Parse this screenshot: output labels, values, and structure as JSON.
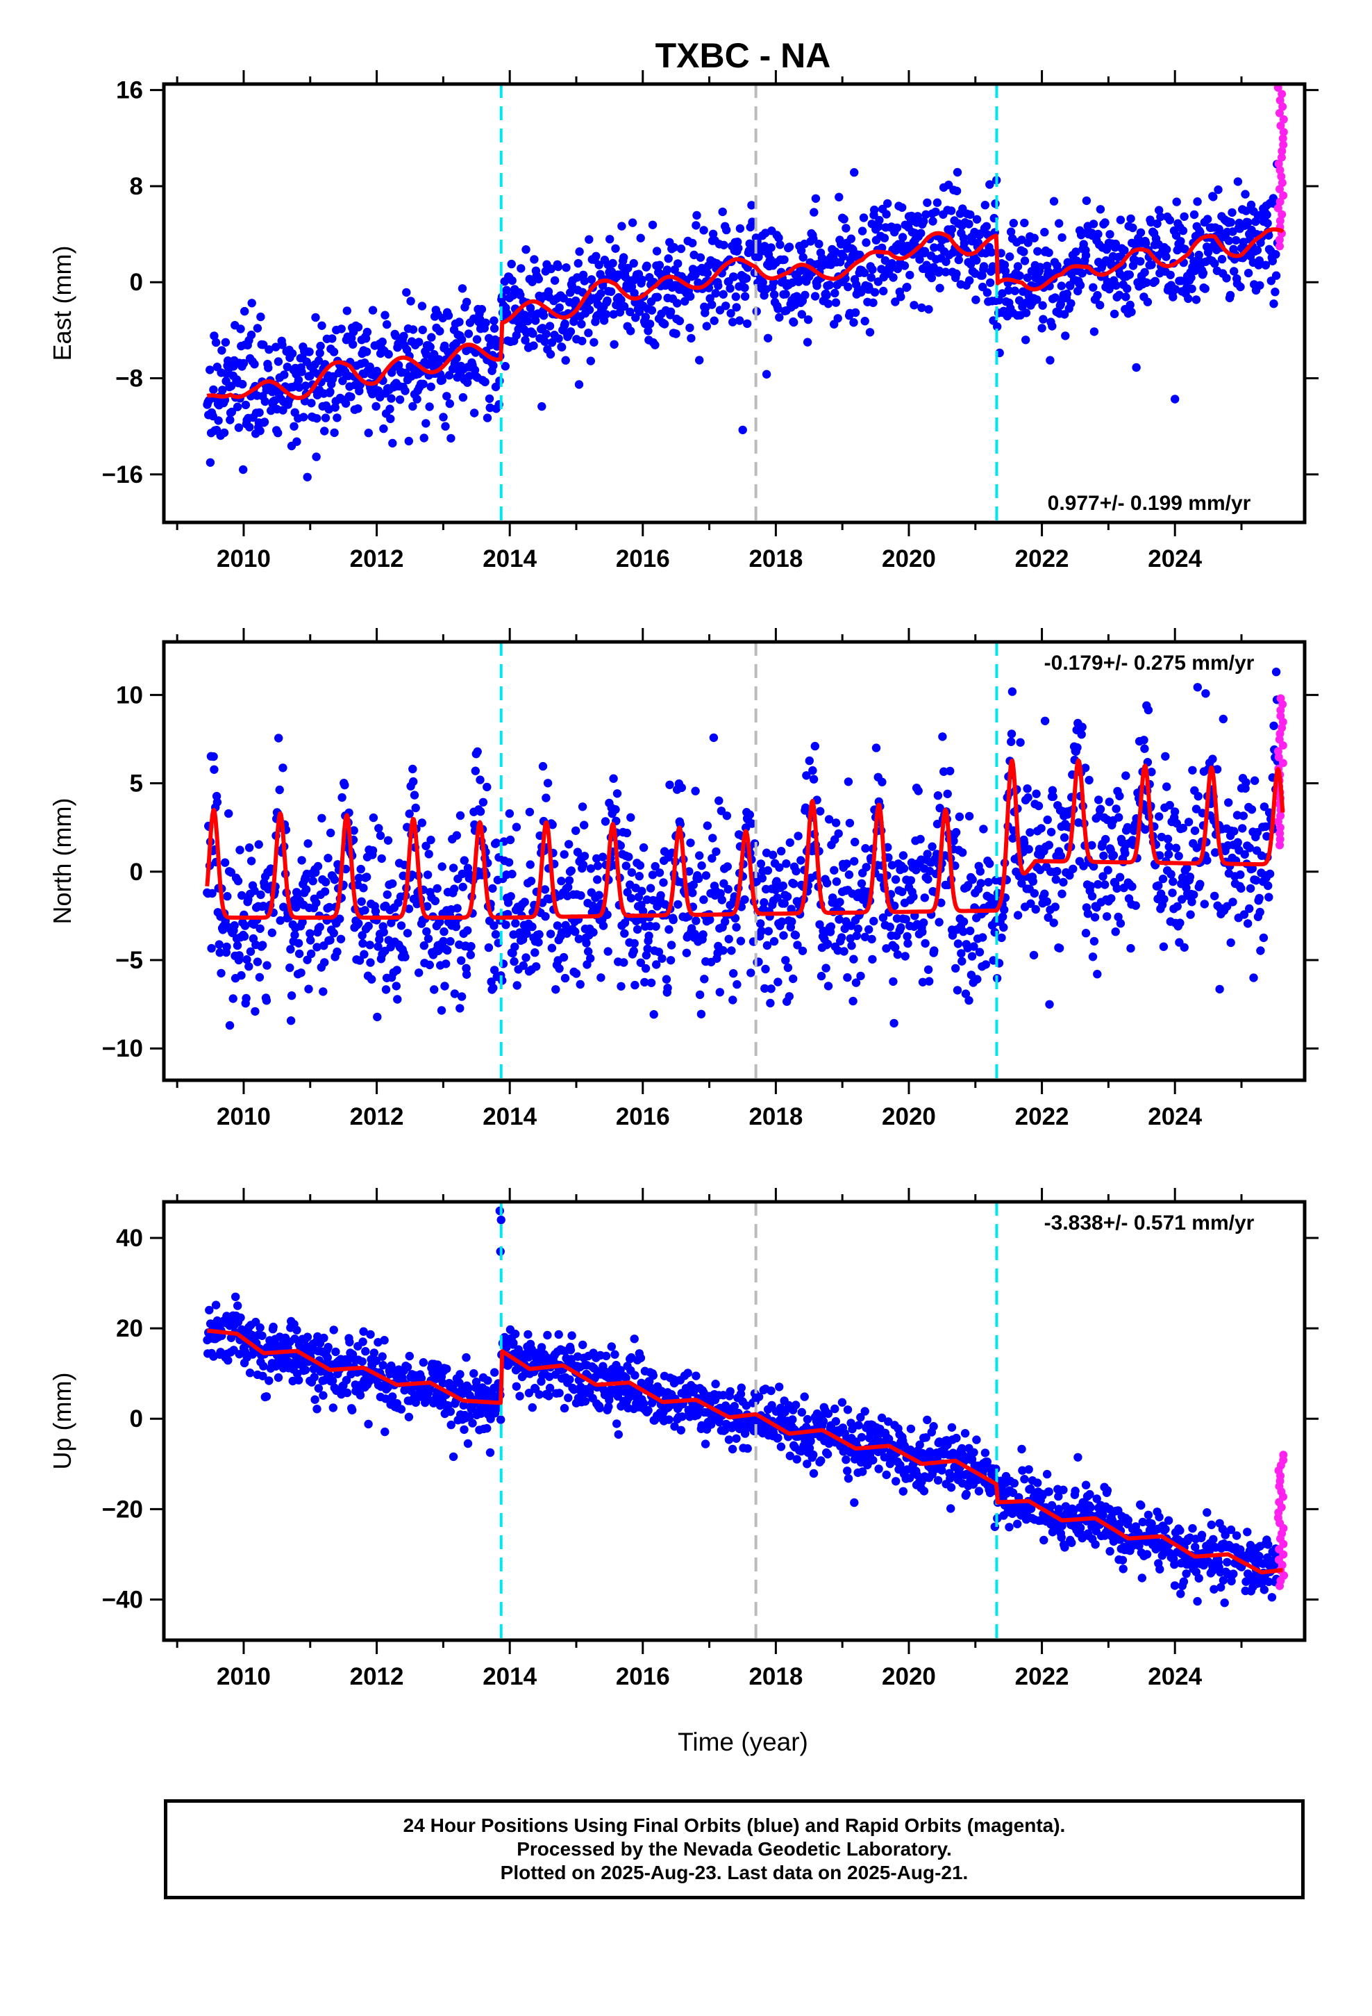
{
  "title": "TXBC - NA",
  "xlabel": "Time (year)",
  "footer": {
    "line1": "24 Hour Positions Using Final Orbits (blue) and Rapid Orbits (magenta).",
    "line2": "Processed by the Nevada Geodetic Laboratory.",
    "line3": "Plotted on 2025-Aug-23. Last data on 2025-Aug-21."
  },
  "colors": {
    "final_orbits": "#0000ff",
    "rapid_orbits": "#ff22ee",
    "model": "#ff0000",
    "equipment_change": "#00e5ee",
    "other_event": "#bbbbbb"
  },
  "chart_data": [
    {
      "type": "scatter",
      "component": "east",
      "ylabel": "East (mm)",
      "rate_label": "0.977+/- 0.199 mm/yr",
      "rate_position": "bottom-right",
      "xlim": [
        2008.8,
        2025.95
      ],
      "ylim": [
        -20,
        16.5
      ],
      "xticks": [
        2010,
        2012,
        2014,
        2016,
        2018,
        2020,
        2022,
        2024
      ],
      "yticks": [
        -16,
        -8,
        0,
        8,
        16
      ],
      "events": [
        {
          "x": 2013.87,
          "type": "equipment_change"
        },
        {
          "x": 2017.7,
          "type": "other_event"
        },
        {
          "x": 2021.32,
          "type": "equipment_change"
        }
      ],
      "trend": [
        [
          2009.45,
          -10.2
        ],
        [
          2009.8,
          -8.5
        ],
        [
          2010.2,
          -9.3
        ],
        [
          2011.0,
          -8.6
        ],
        [
          2011.6,
          -7.0
        ],
        [
          2012.0,
          -7.8
        ],
        [
          2012.6,
          -6.8
        ],
        [
          2013.2,
          -6.3
        ],
        [
          2013.87,
          -5.5
        ],
        [
          2013.88,
          -2.5
        ],
        [
          2014.5,
          -2.5
        ],
        [
          2015.0,
          -1.8
        ],
        [
          2015.6,
          -0.2
        ],
        [
          2016.2,
          -0.8
        ],
        [
          2016.8,
          0.4
        ],
        [
          2017.3,
          0.8
        ],
        [
          2017.7,
          1.8
        ],
        [
          2018.2,
          0.3
        ],
        [
          2018.8,
          1.2
        ],
        [
          2019.3,
          1.0
        ],
        [
          2019.7,
          3.0
        ],
        [
          2020.2,
          2.6
        ],
        [
          2020.6,
          3.8
        ],
        [
          2021.0,
          3.0
        ],
        [
          2021.32,
          3.0
        ],
        [
          2021.33,
          -1.0
        ],
        [
          2021.7,
          0.5
        ],
        [
          2022.3,
          -0.2
        ],
        [
          2022.7,
          1.8
        ],
        [
          2023.2,
          1.0
        ],
        [
          2023.6,
          2.6
        ],
        [
          2024.2,
          1.8
        ],
        [
          2024.6,
          3.8
        ],
        [
          2025.0,
          2.8
        ],
        [
          2025.3,
          3.0
        ],
        [
          2025.6,
          4.3
        ]
      ],
      "trend_amplitude": 1.0,
      "scatter": 3.0,
      "rapid": {
        "x": [
          2025.55,
          2025.64
        ],
        "y": [
          3.0,
          16.2
        ]
      }
    },
    {
      "type": "scatter",
      "component": "north",
      "ylabel": "North (mm)",
      "rate_label": "-0.179+/- 0.275 mm/yr",
      "rate_position": "top-right",
      "xlim": [
        2008.8,
        2025.95
      ],
      "ylim": [
        -11.8,
        13
      ],
      "xticks": [
        2010,
        2012,
        2014,
        2016,
        2018,
        2020,
        2022,
        2024
      ],
      "yticks": [
        -10,
        -5,
        0,
        5,
        10
      ],
      "events": [
        {
          "x": 2013.87,
          "type": "equipment_change"
        },
        {
          "x": 2017.7,
          "type": "other_event"
        },
        {
          "x": 2021.32,
          "type": "equipment_change"
        }
      ],
      "seasonal_peaks": [
        [
          2009.55,
          3.5
        ],
        [
          2010.55,
          3.3
        ],
        [
          2011.55,
          3.2
        ],
        [
          2012.55,
          3.0
        ],
        [
          2013.55,
          2.8
        ],
        [
          2014.55,
          2.8
        ],
        [
          2015.55,
          2.7
        ],
        [
          2016.55,
          2.5
        ],
        [
          2017.55,
          2.3
        ],
        [
          2018.55,
          4.0
        ],
        [
          2019.55,
          3.8
        ],
        [
          2020.55,
          3.5
        ],
        [
          2021.55,
          6.3
        ],
        [
          2022.55,
          6.3
        ],
        [
          2023.55,
          6.0
        ],
        [
          2024.55,
          5.9
        ],
        [
          2025.55,
          5.8
        ]
      ],
      "baseline": [
        [
          2009.45,
          -2.6
        ],
        [
          2013.87,
          -2.6
        ],
        [
          2021.32,
          -2.2
        ],
        [
          2021.9,
          0.6
        ],
        [
          2025.6,
          0.4
        ]
      ],
      "scatter": 3.2,
      "rapid": {
        "x": [
          2025.55,
          2025.64
        ],
        "y": [
          1.5,
          9.8
        ]
      }
    },
    {
      "type": "scatter",
      "component": "up",
      "ylabel": "Up (mm)",
      "rate_label": "-3.838+/- 0.571 mm/yr",
      "rate_position": "top-right",
      "xlim": [
        2008.8,
        2025.95
      ],
      "ylim": [
        -49,
        48
      ],
      "xticks": [
        2010,
        2012,
        2014,
        2016,
        2018,
        2020,
        2022,
        2024
      ],
      "yticks": [
        -40,
        -20,
        0,
        20,
        40
      ],
      "events": [
        {
          "x": 2013.87,
          "type": "equipment_change"
        },
        {
          "x": 2017.7,
          "type": "other_event"
        },
        {
          "x": 2021.32,
          "type": "equipment_change"
        }
      ],
      "trend": [
        [
          2009.45,
          19.5
        ],
        [
          2009.9,
          18.8
        ],
        [
          2010.3,
          14.5
        ],
        [
          2010.8,
          15.0
        ],
        [
          2011.3,
          10.8
        ],
        [
          2011.8,
          11.3
        ],
        [
          2012.3,
          7.5
        ],
        [
          2012.8,
          8.0
        ],
        [
          2013.3,
          4.0
        ],
        [
          2013.87,
          3.5
        ],
        [
          2013.88,
          15.0
        ],
        [
          2014.3,
          11.0
        ],
        [
          2014.8,
          11.8
        ],
        [
          2015.3,
          7.5
        ],
        [
          2015.8,
          8.0
        ],
        [
          2016.3,
          3.7
        ],
        [
          2016.8,
          4.2
        ],
        [
          2017.3,
          0.3
        ],
        [
          2017.7,
          1.0
        ],
        [
          2018.2,
          -3.3
        ],
        [
          2018.7,
          -2.5
        ],
        [
          2019.2,
          -6.6
        ],
        [
          2019.7,
          -6.0
        ],
        [
          2020.2,
          -10.0
        ],
        [
          2020.7,
          -9.3
        ],
        [
          2021.32,
          -14.5
        ],
        [
          2021.33,
          -18.5
        ],
        [
          2021.8,
          -18.2
        ],
        [
          2022.3,
          -22.5
        ],
        [
          2022.8,
          -22.0
        ],
        [
          2023.3,
          -26.5
        ],
        [
          2023.8,
          -26.0
        ],
        [
          2024.3,
          -30.5
        ],
        [
          2024.8,
          -30.0
        ],
        [
          2025.3,
          -34.0
        ],
        [
          2025.6,
          -33.5
        ]
      ],
      "scatter": 4.5,
      "outliers": {
        "x": [
          2013.85,
          2013.87,
          2013.86
        ],
        "y": [
          46,
          44,
          37
        ]
      },
      "rapid": {
        "x": [
          2025.55,
          2025.64
        ],
        "y": [
          -37,
          -8
        ]
      }
    }
  ]
}
